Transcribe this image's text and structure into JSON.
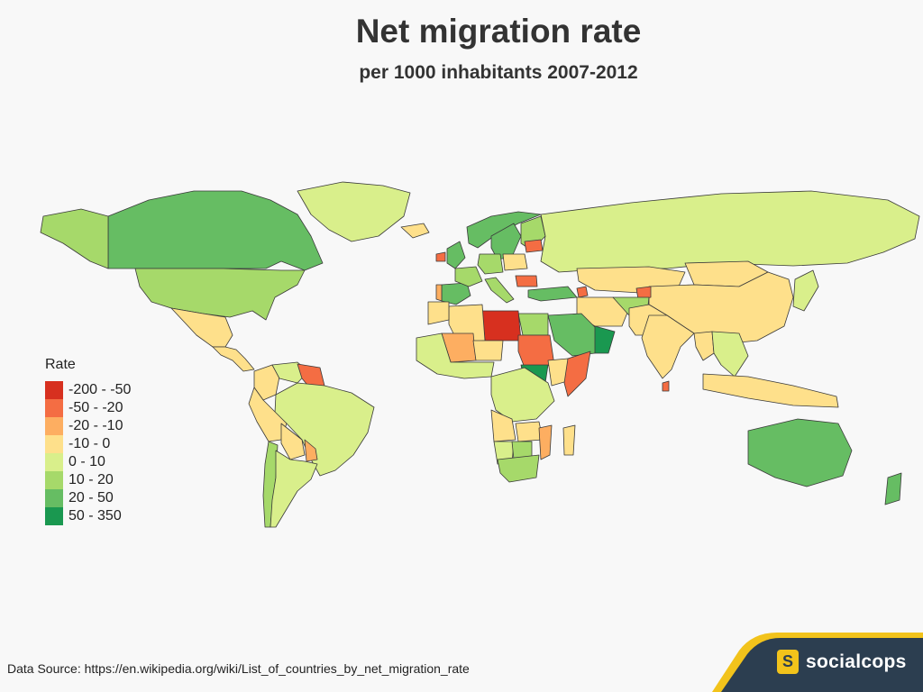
{
  "header": {
    "title": "Net migration rate",
    "subtitle": "per 1000 inhabitants 2007-2012"
  },
  "legend": {
    "title": "Rate",
    "items": [
      {
        "label": "-200 - -50",
        "color": "#d7301f"
      },
      {
        "label": "-50 - -20",
        "color": "#f46d43"
      },
      {
        "label": "-20 - -10",
        "color": "#fdae61"
      },
      {
        "label": "-10 - 0",
        "color": "#fee08b"
      },
      {
        "label": "0 - 10",
        "color": "#d9ef8b"
      },
      {
        "label": "10 - 20",
        "color": "#a6d96a"
      },
      {
        "label": "20 - 50",
        "color": "#66bd63"
      },
      {
        "label": "50 - 350",
        "color": "#1a9850"
      }
    ]
  },
  "footer": {
    "source": "Data Source: https://en.wikipedia.org/wiki/List_of_countries_by_net_migration_rate",
    "brand_name": "socialcops",
    "brand_icon_letter": "S"
  },
  "colors": {
    "background": "#f8f8f8",
    "footer_bar": "#2c3e50",
    "brand_accent": "#f2c31b"
  },
  "regions": [
    {
      "name": "Canada",
      "class": "20 - 50"
    },
    {
      "name": "Alaska",
      "class": "10 - 20"
    },
    {
      "name": "Greenland",
      "class": "0 - 10"
    },
    {
      "name": "United States",
      "class": "10 - 20"
    },
    {
      "name": "Mexico",
      "class": "-10 - 0"
    },
    {
      "name": "Central America",
      "class": "-10 - 0"
    },
    {
      "name": "Colombia",
      "class": "-10 - 0"
    },
    {
      "name": "Venezuela",
      "class": "0 - 10"
    },
    {
      "name": "Guyana",
      "class": "-50 - -20"
    },
    {
      "name": "Brazil",
      "class": "0 - 10"
    },
    {
      "name": "Peru",
      "class": "-10 - 0"
    },
    {
      "name": "Bolivia",
      "class": "-10 - 0"
    },
    {
      "name": "Paraguay",
      "class": "-20 - -10"
    },
    {
      "name": "Chile",
      "class": "10 - 20"
    },
    {
      "name": "Argentina",
      "class": "0 - 10"
    },
    {
      "name": "Iceland",
      "class": "-10 - 0"
    },
    {
      "name": "Norway",
      "class": "20 - 50"
    },
    {
      "name": "Sweden",
      "class": "20 - 50"
    },
    {
      "name": "Finland",
      "class": "10 - 20"
    },
    {
      "name": "United Kingdom",
      "class": "20 - 50"
    },
    {
      "name": "Ireland",
      "class": "-50 - -20"
    },
    {
      "name": "Spain",
      "class": "20 - 50"
    },
    {
      "name": "Portugal",
      "class": "-20 - -10"
    },
    {
      "name": "France",
      "class": "10 - 20"
    },
    {
      "name": "Germany",
      "class": "10 - 20"
    },
    {
      "name": "Poland",
      "class": "-10 - 0"
    },
    {
      "name": "Latvia",
      "class": "-50 - -20"
    },
    {
      "name": "Romania",
      "class": "-50 - -20"
    },
    {
      "name": "Italy",
      "class": "10 - 20"
    },
    {
      "name": "Turkey",
      "class": "20 - 50"
    },
    {
      "name": "Russia",
      "class": "0 - 10"
    },
    {
      "name": "Kazakhstan",
      "class": "-10 - 0"
    },
    {
      "name": "Mongolia",
      "class": "-10 - 0"
    },
    {
      "name": "China",
      "class": "-10 - 0"
    },
    {
      "name": "Japan",
      "class": "0 - 10"
    },
    {
      "name": "Armenia",
      "class": "-50 - -20"
    },
    {
      "name": "Tajikistan",
      "class": "-50 - -20"
    },
    {
      "name": "Iran",
      "class": "-10 - 0"
    },
    {
      "name": "Afghanistan",
      "class": "10 - 20"
    },
    {
      "name": "Pakistan",
      "class": "-10 - 0"
    },
    {
      "name": "India",
      "class": "-10 - 0"
    },
    {
      "name": "Sri Lanka",
      "class": "-50 - -20"
    },
    {
      "name": "Myanmar",
      "class": "-10 - 0"
    },
    {
      "name": "Southeast Asia",
      "class": "0 - 10"
    },
    {
      "name": "Indonesia",
      "class": "-10 - 0"
    },
    {
      "name": "Australia",
      "class": "20 - 50"
    },
    {
      "name": "New Zealand",
      "class": "20 - 50"
    },
    {
      "name": "Saudi Arabia",
      "class": "20 - 50"
    },
    {
      "name": "Oman",
      "class": "50 - 350"
    },
    {
      "name": "Egypt",
      "class": "10 - 20"
    },
    {
      "name": "Libya",
      "class": "-200 - -50"
    },
    {
      "name": "Algeria",
      "class": "-10 - 0"
    },
    {
      "name": "Morocco",
      "class": "-10 - 0"
    },
    {
      "name": "Mali",
      "class": "-20 - -10"
    },
    {
      "name": "Niger",
      "class": "-10 - 0"
    },
    {
      "name": "Sudan",
      "class": "-50 - -20"
    },
    {
      "name": "South Sudan",
      "class": "50 - 350"
    },
    {
      "name": "Ethiopia",
      "class": "-10 - 0"
    },
    {
      "name": "Somalia",
      "class": "-50 - -20"
    },
    {
      "name": "West Africa",
      "class": "0 - 10"
    },
    {
      "name": "Central Africa",
      "class": "0 - 10"
    },
    {
      "name": "Angola",
      "class": "-10 - 0"
    },
    {
      "name": "Zambia",
      "class": "-10 - 0"
    },
    {
      "name": "Mozambique",
      "class": "-20 - -10"
    },
    {
      "name": "Namibia",
      "class": "0 - 10"
    },
    {
      "name": "Botswana",
      "class": "10 - 20"
    },
    {
      "name": "South Africa",
      "class": "10 - 20"
    },
    {
      "name": "Madagascar",
      "class": "-10 - 0"
    }
  ]
}
